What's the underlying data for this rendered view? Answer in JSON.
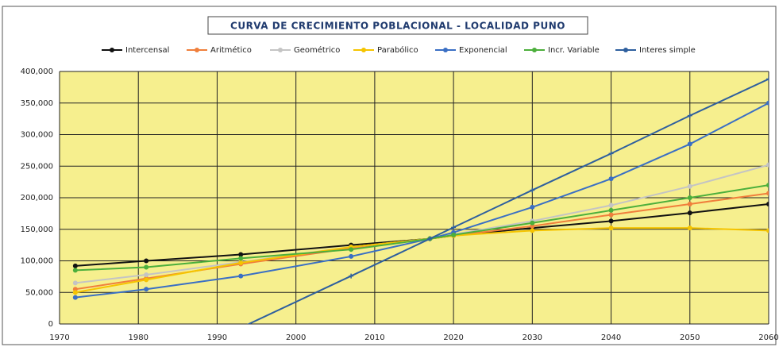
{
  "chart_data": {
    "type": "line",
    "title": "CURVA DE CRECIMIENTO POBLACIONAL - LOCALIDAD PUNO",
    "x": [
      1972,
      1981,
      1993,
      2007,
      2017,
      2020,
      2030,
      2040,
      2050,
      2060
    ],
    "xlim": [
      1970,
      2060
    ],
    "xticks": [
      1970,
      1980,
      1990,
      2000,
      2010,
      2020,
      2030,
      2040,
      2050,
      2060
    ],
    "ylim": [
      0,
      400000
    ],
    "yticks": [
      0,
      {
        "value": 50000,
        "label": "50,000"
      },
      {
        "value": 100000,
        "label": "100,000"
      },
      {
        "value": 150000,
        "label": "150,000"
      },
      {
        "value": 200000,
        "label": "200,000"
      },
      {
        "value": 250000,
        "label": "250,000"
      },
      {
        "value": 300000,
        "label": "300,000"
      },
      {
        "value": 350000,
        "label": "350,000"
      },
      {
        "value": 400000,
        "label": "400,000"
      }
    ],
    "grid": true,
    "legend": "top",
    "series": [
      {
        "name": "Intercensal",
        "color": "#111111",
        "values": [
          92000,
          100000,
          110000,
          125000,
          135000,
          140000,
          152000,
          163000,
          176000,
          190000
        ]
      },
      {
        "name": "Aritmético",
        "color": "#f07f3c",
        "values": [
          55000,
          72000,
          95000,
          120000,
          135000,
          140000,
          155000,
          173000,
          190000,
          207000
        ]
      },
      {
        "name": "Geométrico",
        "color": "#c4c4c4",
        "values": [
          65000,
          78000,
          98000,
          122000,
          135000,
          142000,
          163000,
          188000,
          218000,
          252000
        ]
      },
      {
        "name": "Parabólico",
        "color": "#f5c400",
        "values": [
          50000,
          70000,
          97000,
          122000,
          135000,
          140000,
          148000,
          152000,
          152000,
          148000
        ]
      },
      {
        "name": "Exponencial",
        "color": "#3a6fc4",
        "values": [
          42000,
          55000,
          76000,
          107000,
          135000,
          145000,
          185000,
          230000,
          285000,
          350000
        ]
      },
      {
        "name": "Incr. Variable",
        "color": "#4caf3c",
        "values": [
          85000,
          90000,
          104000,
          118000,
          135000,
          141000,
          160000,
          180000,
          200000,
          220000
        ]
      },
      {
        "name": "Interes simple",
        "color": "#2e5f9e",
        "values": [
          null,
          null,
          -6000,
          76000,
          135000,
          153000,
          212000,
          270000,
          330000,
          388000
        ]
      }
    ]
  }
}
